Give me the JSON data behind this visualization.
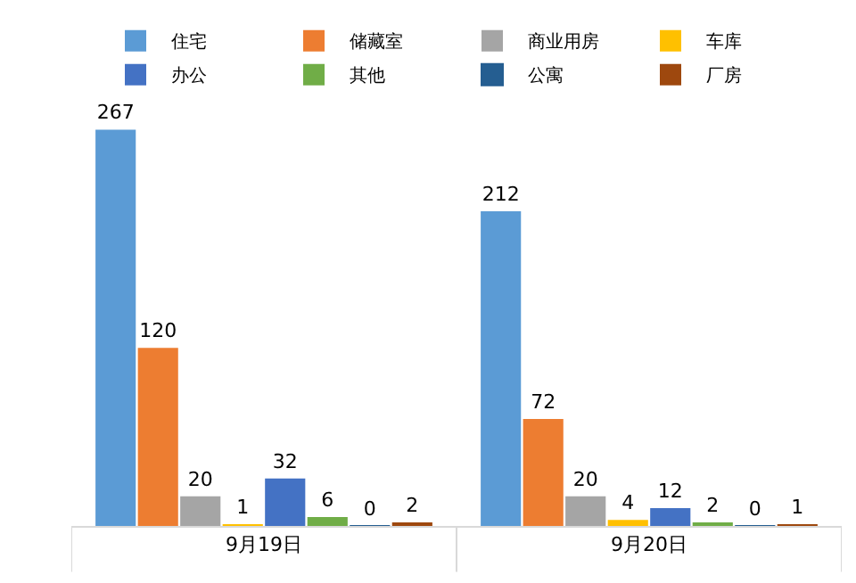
{
  "chart_data": {
    "type": "bar",
    "categories": [
      "9月19日",
      "9月20日"
    ],
    "series": [
      {
        "name": "住宅",
        "color": "#5b9bd5",
        "values": [
          267,
          212
        ]
      },
      {
        "name": "储藏室",
        "color": "#ed7d31",
        "values": [
          120,
          72
        ]
      },
      {
        "name": "商业用房",
        "color": "#a5a5a5",
        "values": [
          20,
          20
        ]
      },
      {
        "name": "车库",
        "color": "#ffc000",
        "values": [
          1,
          4
        ]
      },
      {
        "name": "办公",
        "color": "#4472c4",
        "values": [
          32,
          12
        ]
      },
      {
        "name": "其他",
        "color": "#70ad47",
        "values": [
          6,
          2
        ]
      },
      {
        "name": "公寓",
        "color": "#255e91",
        "values": [
          0,
          0
        ]
      },
      {
        "name": "厂房",
        "color": "#9e480e",
        "values": [
          2,
          1
        ]
      }
    ],
    "data_labels": true,
    "legend": "top",
    "grid": false,
    "tick_labels": "x"
  }
}
